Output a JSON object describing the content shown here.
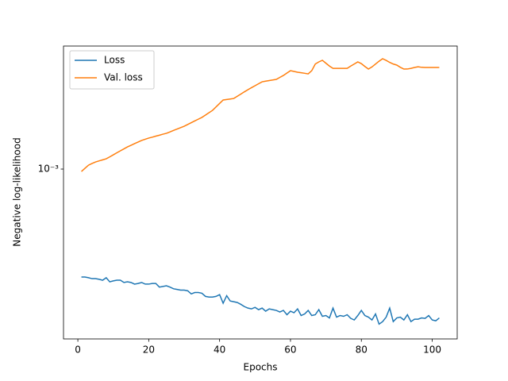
{
  "chart_data": {
    "type": "line",
    "xlabel": "Epochs",
    "ylabel": "Negative log-likelihood",
    "yscale": "log",
    "legend": "upper left",
    "xlim": [
      -4.05,
      107.05
    ],
    "xticks": [
      0,
      20,
      40,
      60,
      80,
      100
    ],
    "ylim": [
      0.0003425,
      0.002173
    ],
    "yticks": [
      {
        "value": 0.001,
        "label": "10⁻³"
      }
    ],
    "x": [
      1,
      2,
      3,
      4,
      5,
      6,
      7,
      8,
      9,
      10,
      11,
      12,
      13,
      14,
      15,
      16,
      17,
      18,
      19,
      20,
      21,
      22,
      23,
      24,
      25,
      26,
      27,
      28,
      29,
      30,
      31,
      32,
      33,
      34,
      35,
      36,
      37,
      38,
      39,
      40,
      41,
      42,
      43,
      44,
      45,
      46,
      47,
      48,
      49,
      50,
      51,
      52,
      53,
      54,
      55,
      56,
      57,
      58,
      59,
      60,
      61,
      62,
      63,
      64,
      65,
      66,
      67,
      68,
      69,
      70,
      71,
      72,
      73,
      74,
      75,
      76,
      77,
      78,
      79,
      80,
      81,
      82,
      83,
      84,
      85,
      86,
      87,
      88,
      89,
      90,
      91,
      92,
      93,
      94,
      95,
      96,
      97,
      98,
      99,
      100,
      101,
      102
    ],
    "series": [
      {
        "name": "Loss",
        "color": "#1f77b4",
        "values": [
          0.000506,
          0.000506,
          0.000504,
          0.000501,
          0.000501,
          0.000499,
          0.000496,
          0.000504,
          0.000491,
          0.000494,
          0.000496,
          0.000496,
          0.000489,
          0.000491,
          0.000489,
          0.000484,
          0.000486,
          0.000489,
          0.000484,
          0.000484,
          0.000486,
          0.000486,
          0.000475,
          0.000477,
          0.000479,
          0.000475,
          0.00047,
          0.000468,
          0.000466,
          0.000466,
          0.000464,
          0.000455,
          0.000459,
          0.000459,
          0.000457,
          0.000448,
          0.000446,
          0.000446,
          0.000448,
          0.000453,
          0.000429,
          0.00045,
          0.000435,
          0.000433,
          0.000431,
          0.000426,
          0.00042,
          0.000416,
          0.000414,
          0.000418,
          0.000412,
          0.000416,
          0.000408,
          0.000414,
          0.000412,
          0.00041,
          0.000406,
          0.00041,
          0.000399,
          0.000408,
          0.000404,
          0.000414,
          0.000397,
          0.000401,
          0.00041,
          0.000397,
          0.000399,
          0.000412,
          0.000395,
          0.000397,
          0.000391,
          0.000416,
          0.000393,
          0.000397,
          0.000395,
          0.000399,
          0.00039,
          0.000386,
          0.000397,
          0.00041,
          0.000397,
          0.000393,
          0.000386,
          0.000401,
          0.000376,
          0.000382,
          0.000393,
          0.000416,
          0.000382,
          0.000391,
          0.000393,
          0.000386,
          0.000399,
          0.000382,
          0.000388,
          0.000388,
          0.000391,
          0.00039,
          0.000397,
          0.000386,
          0.000384,
          0.000391
        ]
      },
      {
        "name": "Val. loss",
        "color": "#ff7f0e",
        "values": [
          0.000985,
          0.001005,
          0.001025,
          0.001036,
          0.001046,
          0.001053,
          0.00106,
          0.001067,
          0.00108,
          0.001094,
          0.001108,
          0.001122,
          0.001136,
          0.00115,
          0.001162,
          0.001174,
          0.001186,
          0.001198,
          0.001207,
          0.001216,
          0.001223,
          0.001231,
          0.001238,
          0.001246,
          0.001253,
          0.001264,
          0.001276,
          0.001287,
          0.001299,
          0.00131,
          0.001325,
          0.00134,
          0.001355,
          0.00137,
          0.001385,
          0.001406,
          0.001427,
          0.001448,
          0.00148,
          0.001513,
          0.001546,
          0.001551,
          0.001556,
          0.001561,
          0.001583,
          0.001605,
          0.001628,
          0.00165,
          0.001671,
          0.001692,
          0.001713,
          0.001734,
          0.001741,
          0.001748,
          0.001754,
          0.001761,
          0.001783,
          0.001805,
          0.001833,
          0.00186,
          0.001851,
          0.001842,
          0.001836,
          0.00183,
          0.001823,
          0.00186,
          0.00194,
          0.001966,
          0.001986,
          0.00195,
          0.001915,
          0.001888,
          0.001888,
          0.001888,
          0.001888,
          0.001888,
          0.001915,
          0.00194,
          0.001966,
          0.001945,
          0.00191,
          0.001879,
          0.001905,
          0.00194,
          0.001975,
          0.002006,
          0.001985,
          0.00196,
          0.00194,
          0.001927,
          0.0019,
          0.001879,
          0.00188,
          0.001888,
          0.001898,
          0.001907,
          0.0019,
          0.001898,
          0.001898,
          0.001898,
          0.001898,
          0.001898
        ]
      }
    ]
  }
}
